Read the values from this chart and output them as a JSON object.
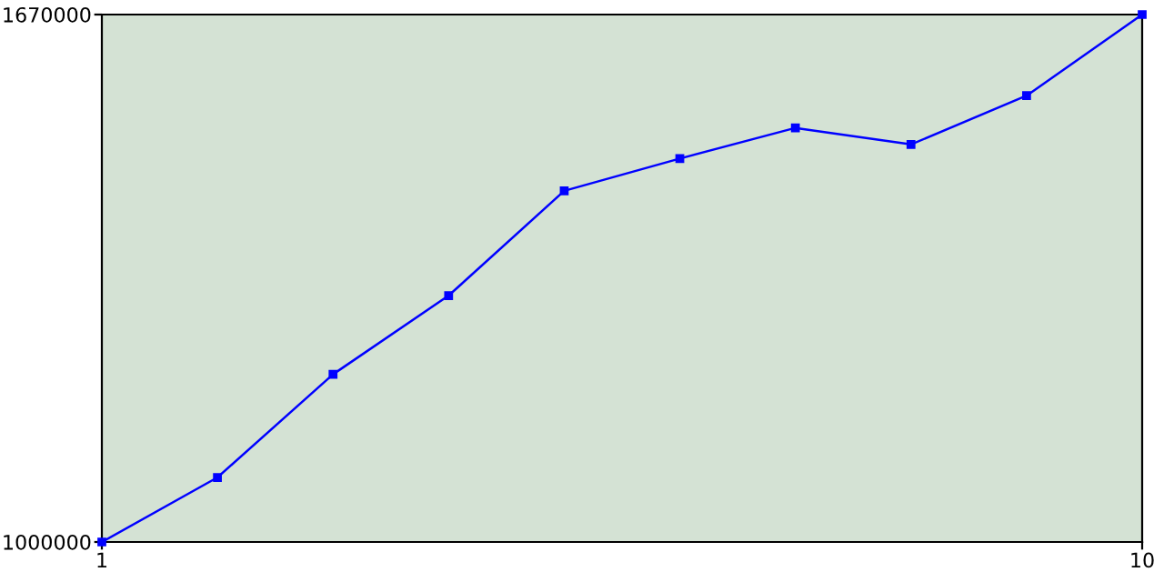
{
  "chart_data": {
    "type": "line",
    "x": [
      1,
      2,
      3,
      4,
      5,
      6,
      7,
      8,
      9,
      10
    ],
    "series": [
      {
        "color": "#0000ff",
        "values": [
          1000000,
          1082000,
          1213000,
          1313000,
          1446000,
          1487000,
          1526000,
          1505000,
          1567000,
          1670000
        ]
      }
    ],
    "xlim": [
      1,
      10
    ],
    "xticks": [
      1,
      10
    ],
    "ylim": [
      1000000,
      1670000
    ],
    "yticks": [
      1000000,
      1670000
    ],
    "marker": "square",
    "grid": false
  }
}
